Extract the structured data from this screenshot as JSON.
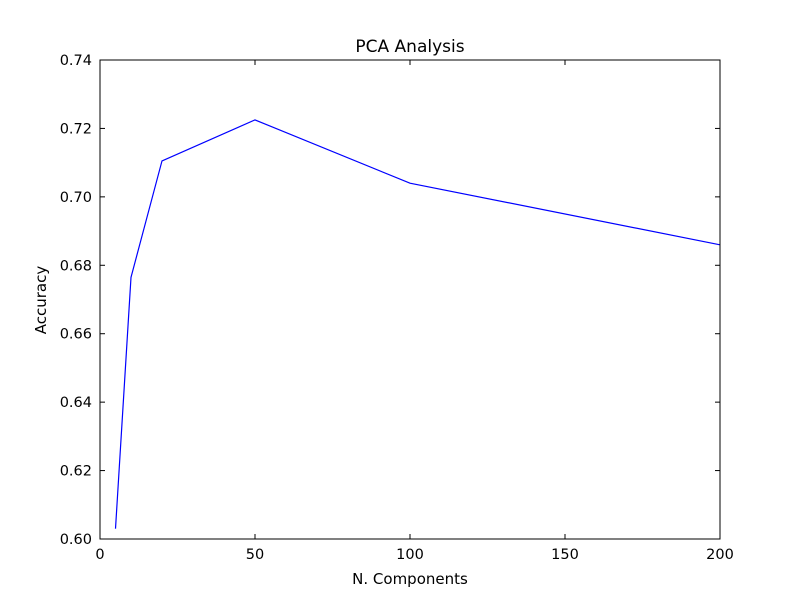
{
  "chart_data": {
    "type": "line",
    "title": "PCA Analysis",
    "xlabel": "N. Components",
    "ylabel": "Accuracy",
    "xlim": [
      0,
      200
    ],
    "ylim": [
      0.6,
      0.74
    ],
    "xticks": [
      0,
      50,
      100,
      150,
      200
    ],
    "xtick_labels": [
      "0",
      "50",
      "100",
      "150",
      "200"
    ],
    "yticks": [
      0.6,
      0.62,
      0.64,
      0.66,
      0.68,
      0.7,
      0.72,
      0.74
    ],
    "ytick_labels": [
      "0.60",
      "0.62",
      "0.64",
      "0.66",
      "0.68",
      "0.70",
      "0.72",
      "0.74"
    ],
    "grid": false,
    "series": [
      {
        "color": "#0000ff",
        "x": [
          5,
          10,
          20,
          50,
          100,
          200
        ],
        "y": [
          0.603,
          0.6765,
          0.7105,
          0.7225,
          0.704,
          0.686
        ]
      }
    ]
  }
}
